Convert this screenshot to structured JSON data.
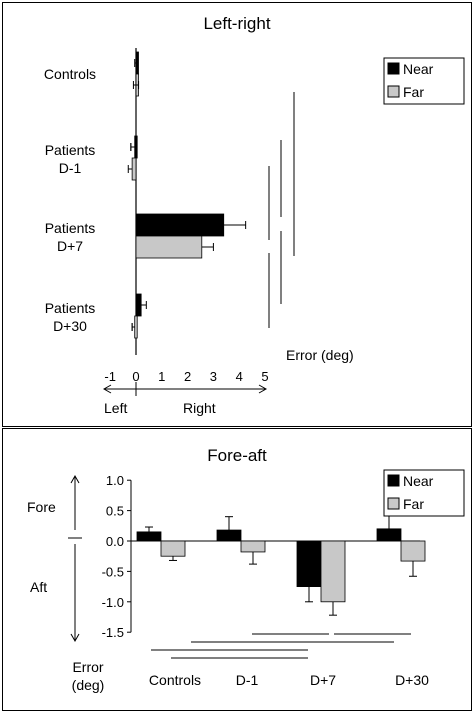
{
  "colors": {
    "near": "#000000",
    "far": "#c8c8c8"
  },
  "chart_data": [
    {
      "type": "bar",
      "orientation": "horizontal",
      "title": "Left-right",
      "xlabel": "Error (deg)",
      "xlim": [
        -1,
        5
      ],
      "x_ticks": [
        "-1",
        "0",
        "1",
        "2",
        "3",
        "4",
        "5"
      ],
      "direction_labels": [
        "Left",
        "Right"
      ],
      "categories": [
        "Controls",
        "Patients\nD-1",
        "Patients\nD+7",
        "Patients\nD+30"
      ],
      "category_lines": [
        [
          "Controls"
        ],
        [
          "Patients",
          "D-1"
        ],
        [
          "Patients",
          "D+7"
        ],
        [
          "Patients",
          "D+30"
        ]
      ],
      "series": [
        {
          "name": "Near",
          "values": [
            0.0,
            -0.05,
            3.4,
            0.2
          ],
          "errors": [
            0.05,
            0.15,
            0.85,
            0.2
          ]
        },
        {
          "name": "Far",
          "values": [
            0.0,
            -0.15,
            2.55,
            -0.05
          ],
          "errors": [
            0.1,
            0.15,
            0.45,
            0.1
          ]
        }
      ],
      "legend": "top-right",
      "grid": false,
      "significance_lines": [
        [
          0,
          2
        ],
        [
          1,
          2
        ],
        [
          2,
          3
        ],
        [
          1,
          3
        ]
      ]
    },
    {
      "type": "bar",
      "title": "Fore-aft",
      "ylabel": "Error\n(deg)",
      "ylabel_lines": [
        "Error",
        "(deg)"
      ],
      "ylim": [
        -1.5,
        1.0
      ],
      "y_ticks": [
        "1.0",
        "0.5",
        "0.0",
        "-0.5",
        "-1.0",
        "-1.5"
      ],
      "direction_labels": [
        "Fore",
        "Aft"
      ],
      "categories": [
        "Controls",
        "D-1",
        "D+7",
        "D+30"
      ],
      "series": [
        {
          "name": "Near",
          "values": [
            0.15,
            0.18,
            -0.75,
            0.2
          ],
          "errors": [
            0.08,
            0.22,
            0.25,
            0.22
          ]
        },
        {
          "name": "Far",
          "values": [
            -0.25,
            -0.18,
            -1.0,
            -0.33
          ],
          "errors": [
            0.07,
            0.2,
            0.22,
            0.25
          ]
        }
      ],
      "legend": "top-right",
      "grid": false,
      "significance_lines": [
        [
          2,
          3
        ],
        [
          1,
          2
        ],
        [
          1,
          3
        ],
        [
          0,
          2
        ],
        [
          0,
          2
        ]
      ]
    }
  ]
}
